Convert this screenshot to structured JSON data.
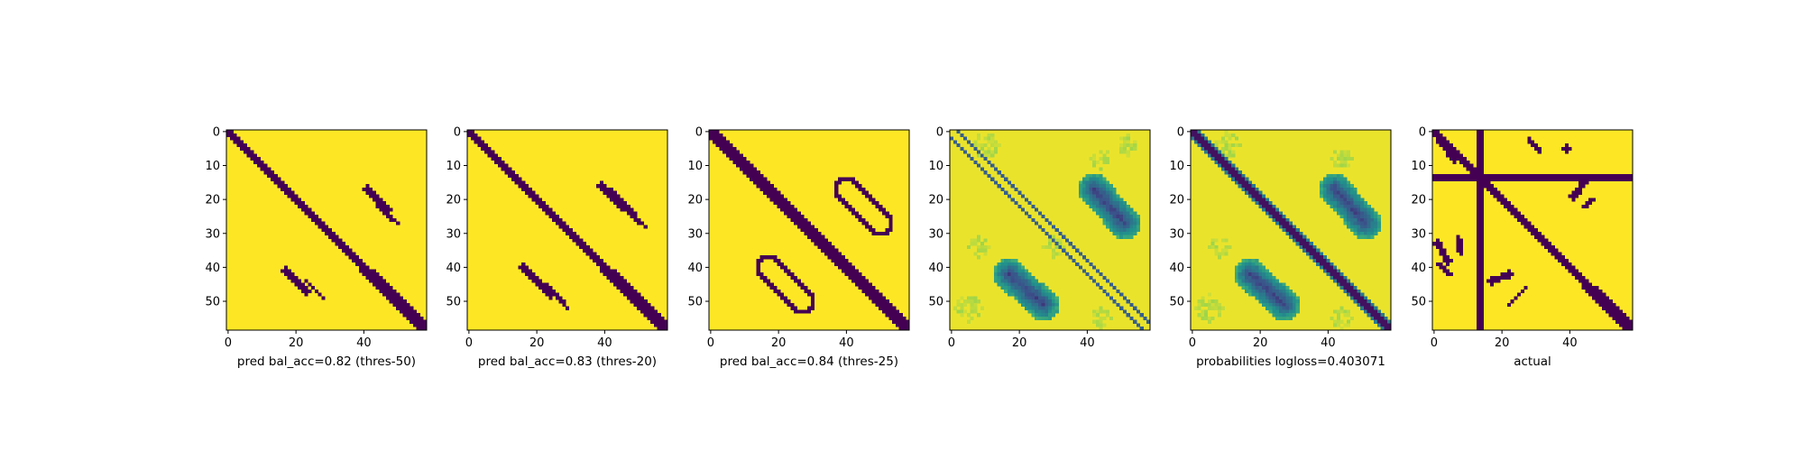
{
  "chart_data": {
    "type": "heatmap",
    "size": [
      59,
      59
    ],
    "xticks": [
      0,
      20,
      40
    ],
    "yticks": [
      0,
      10,
      20,
      30,
      40,
      50
    ],
    "colors": {
      "low": "#440154",
      "high": "#fde725",
      "colormap": "viridis"
    },
    "panels": [
      {
        "label": "pred bal_acc=0.82 (thres-50)",
        "kind": "binary",
        "diagonal_halfwidth": 1.2,
        "diagonal_widen_after": 40,
        "diagonal_widen_by": 0.8,
        "segments": [
          {
            "from": [
              41,
              17
            ],
            "to": [
              47,
              23
            ],
            "width": 1.0
          },
          {
            "from": [
              44,
              23
            ],
            "to": [
              49,
              28
            ],
            "width": 0.6
          },
          {
            "from": [
              17,
              41
            ],
            "to": [
              23,
              47
            ],
            "width": 1.0
          },
          {
            "from": [
              22,
              44
            ],
            "to": [
              27,
              50
            ],
            "width": 0.6
          }
        ]
      },
      {
        "label": "pred bal_acc=0.83 (thres-20)",
        "kind": "binary",
        "diagonal_halfwidth": 1.8,
        "diagonal_widen_after": 40,
        "diagonal_widen_by": 0.6,
        "segments": [
          {
            "from": [
              40,
              16
            ],
            "to": [
              48,
              24
            ],
            "width": 1.3
          },
          {
            "from": [
              45,
              23
            ],
            "to": [
              52,
              29
            ],
            "width": 0.6
          },
          {
            "from": [
              16,
              39
            ],
            "to": [
              24,
              48
            ],
            "width": 1.3
          },
          {
            "from": [
              22,
              45
            ],
            "to": [
              28,
              52
            ],
            "width": 0.6
          }
        ]
      },
      {
        "label": "pred bal_acc=0.84 (thres-25)",
        "kind": "binary",
        "diagonal_halfwidth": 2.0,
        "diagonal_widen_after": 40,
        "diagonal_widen_by": 0.5,
        "loops": [
          {
            "from": [
              40,
              17
            ],
            "to": [
              50,
              27
            ],
            "halfwidth": 3.8,
            "thickness": 1.0
          },
          {
            "from": [
              17,
              40
            ],
            "to": [
              27,
              50
            ],
            "halfwidth": 3.8,
            "thickness": 1.0
          }
        ]
      },
      {
        "label": "",
        "kind": "probability",
        "baseline": 0.97,
        "diagonal_lines": [
          {
            "offset": -2.0,
            "value": 0.3,
            "width": 0.55
          },
          {
            "offset": 2.0,
            "value": 0.3,
            "width": 0.55
          }
        ],
        "blobs": [
          {
            "from": [
              42,
              17
            ],
            "to": [
              51,
              27
            ],
            "halfwidth": 4.5,
            "core": 0.15,
            "rim": 0.55
          },
          {
            "from": [
              17,
              42
            ],
            "to": [
              27,
              51
            ],
            "halfwidth": 4.5,
            "core": 0.15,
            "rim": 0.55
          }
        ],
        "speckle": [
          {
            "center": [
              4,
              10
            ],
            "radius": 4.0,
            "value": 0.85
          },
          {
            "center": [
              8,
              44
            ],
            "radius": 3.0,
            "value": 0.85
          },
          {
            "center": [
              4,
              52
            ],
            "radius": 3.0,
            "value": 0.85
          },
          {
            "center": [
              34,
              8
            ],
            "radius": 3.0,
            "value": 0.85
          },
          {
            "center": [
              52,
              5
            ],
            "radius": 4.0,
            "value": 0.85
          },
          {
            "center": [
              55,
              44
            ],
            "radius": 3.0,
            "value": 0.85
          },
          {
            "center": [
              34,
              30
            ],
            "radius": 3.0,
            "value": 0.85
          }
        ]
      },
      {
        "label": "probabilities logloss=0.403071",
        "kind": "probability",
        "baseline": 0.97,
        "diagonal_band": {
          "halfwidth": 1.6,
          "value": 0.05,
          "edge": 0.4
        },
        "blobs": [
          {
            "from": [
              42,
              17
            ],
            "to": [
              51,
              27
            ],
            "halfwidth": 4.5,
            "core": 0.15,
            "rim": 0.55
          },
          {
            "from": [
              17,
              42
            ],
            "to": [
              27,
              51
            ],
            "halfwidth": 4.5,
            "core": 0.15,
            "rim": 0.55
          }
        ],
        "speckle": [
          {
            "center": [
              4,
              10
            ],
            "radius": 4.0,
            "value": 0.85
          },
          {
            "center": [
              8,
              44
            ],
            "radius": 3.0,
            "value": 0.85
          },
          {
            "center": [
              34,
              8
            ],
            "radius": 3.0,
            "value": 0.85
          },
          {
            "center": [
              52,
              5
            ],
            "radius": 4.0,
            "value": 0.85
          },
          {
            "center": [
              55,
              44
            ],
            "radius": 3.0,
            "value": 0.85
          }
        ]
      },
      {
        "label": "actual",
        "kind": "binary",
        "diagonal_halfwidth": 1.6,
        "diagonal_widen_after": 45,
        "diagonal_widen_by": 0.8,
        "bands": [
          {
            "orientation": "row",
            "index": 13,
            "thickness": 2
          },
          {
            "orientation": "col",
            "index": 13,
            "thickness": 2
          }
        ],
        "segments": [
          {
            "from": [
              1,
              1
            ],
            "to": [
              8,
              6
            ],
            "width": 1.2
          },
          {
            "from": [
              2,
              28
            ],
            "to": [
              6,
              31
            ],
            "width": 0.8
          },
          {
            "from": [
              5,
              38
            ],
            "to": [
              5,
              40
            ],
            "width": 0.7
          },
          {
            "from": [
              4,
              39
            ],
            "to": [
              6,
              39
            ],
            "width": 0.7
          },
          {
            "from": [
              14,
              45
            ],
            "to": [
              19,
              41
            ],
            "width": 1.0
          },
          {
            "from": [
              20,
              47
            ],
            "to": [
              22,
              44
            ],
            "width": 0.7
          },
          {
            "from": [
              33,
              1
            ],
            "to": [
              38,
              4
            ],
            "width": 1.0
          },
          {
            "from": [
              39,
              1
            ],
            "to": [
              42,
              5
            ],
            "width": 0.8
          },
          {
            "from": [
              31,
              7
            ],
            "to": [
              36,
              8
            ],
            "width": 0.8
          },
          {
            "from": [
              44,
              17
            ],
            "to": [
              42,
              22
            ],
            "width": 1.0
          },
          {
            "from": [
              46,
              27
            ],
            "to": [
              51,
              22
            ],
            "width": 0.6
          }
        ]
      }
    ]
  }
}
